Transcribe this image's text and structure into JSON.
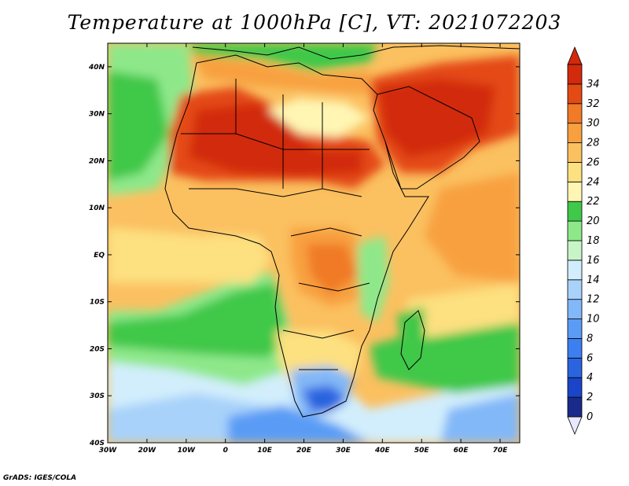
{
  "title": "Temperature at 1000hPa [C], VT: 2021072203",
  "footer": "GrADS: IGES/COLA",
  "map": {
    "lon_range": [
      -30,
      75
    ],
    "lat_range": [
      -40,
      45
    ],
    "lon_ticks": [
      {
        "lon": -30,
        "label": "30W"
      },
      {
        "lon": -20,
        "label": "20W"
      },
      {
        "lon": -10,
        "label": "10W"
      },
      {
        "lon": 0,
        "label": "0"
      },
      {
        "lon": 10,
        "label": "10E"
      },
      {
        "lon": 20,
        "label": "20E"
      },
      {
        "lon": 30,
        "label": "30E"
      },
      {
        "lon": 40,
        "label": "40E"
      },
      {
        "lon": 50,
        "label": "50E"
      },
      {
        "lon": 60,
        "label": "60E"
      },
      {
        "lon": 70,
        "label": "70E"
      }
    ],
    "lat_ticks": [
      {
        "lat": 40,
        "label": "40N"
      },
      {
        "lat": 30,
        "label": "30N"
      },
      {
        "lat": 20,
        "label": "20N"
      },
      {
        "lat": 10,
        "label": "10N"
      },
      {
        "lat": 0,
        "label": "EQ"
      },
      {
        "lat": -10,
        "label": "10S"
      },
      {
        "lat": -20,
        "label": "20S"
      },
      {
        "lat": -30,
        "label": "30S"
      },
      {
        "lat": -40,
        "label": "40S"
      }
    ]
  },
  "colorbar": {
    "levels": [
      "0",
      "2",
      "4",
      "6",
      "8",
      "10",
      "12",
      "14",
      "16",
      "18",
      "20",
      "22",
      "24",
      "26",
      "28",
      "30",
      "32",
      "34"
    ],
    "colors": [
      "#1a2a8a",
      "#1b45c8",
      "#2a64e0",
      "#3c7ff0",
      "#5a9cf5",
      "#82b8f8",
      "#a8d2fa",
      "#d2eefc",
      "#c8f5c8",
      "#8ee88a",
      "#40c84a",
      "#fff6b4",
      "#fde080",
      "#fbc060",
      "#f8a040",
      "#f07a28",
      "#e44a14",
      "#d22a0a"
    ],
    "over_color": "#d22a0a",
    "under_color": "#e8e8ff"
  }
}
